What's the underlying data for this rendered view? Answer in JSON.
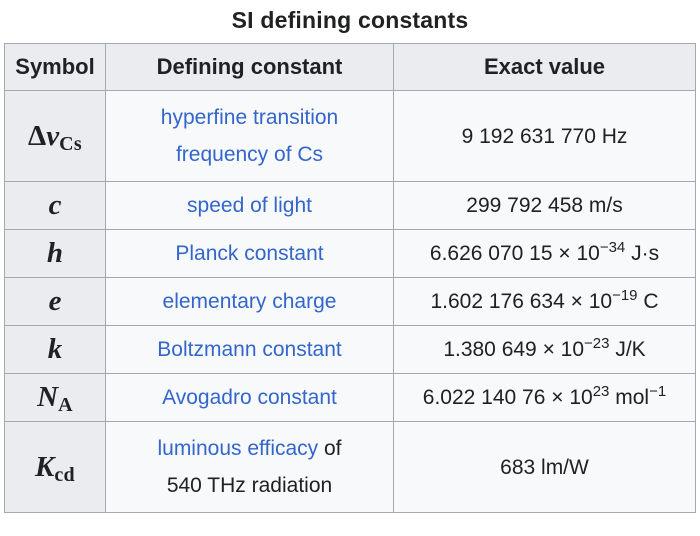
{
  "title": "SI defining constants",
  "headers": [
    "Symbol",
    "Defining constant",
    "Exact value"
  ],
  "colors": {
    "header_bg": "#eaecf0",
    "symbol_col_bg": "#eaecf0",
    "cell_bg": "#f8f9fa",
    "border": "#a2a9b1",
    "link": "#3366cc",
    "text": "#202122"
  },
  "rows": [
    {
      "symbol": {
        "pre": "Δ",
        "main": "ν",
        "sub": "Cs"
      },
      "constant_lines": [
        [
          {
            "text": "hyperfine transition",
            "link": true
          }
        ],
        [
          {
            "text": "frequency of Cs",
            "link": true
          }
        ]
      ],
      "value": [
        {
          "text": "9 192 631 770 Hz"
        }
      ]
    },
    {
      "symbol": {
        "main": "c"
      },
      "constant_lines": [
        [
          {
            "text": "speed of light",
            "link": true
          }
        ]
      ],
      "value": [
        {
          "text": "299 792 458 m/s"
        }
      ]
    },
    {
      "symbol": {
        "main": "h"
      },
      "constant_lines": [
        [
          {
            "text": "Planck constant",
            "link": true
          }
        ]
      ],
      "value": [
        {
          "text": "6.626 070 15 × 10"
        },
        {
          "text": "−34",
          "sup": true
        },
        {
          "text": " J·s"
        }
      ]
    },
    {
      "symbol": {
        "main": "e"
      },
      "constant_lines": [
        [
          {
            "text": "elementary charge",
            "link": true
          }
        ]
      ],
      "value": [
        {
          "text": "1.602 176 634 × 10"
        },
        {
          "text": "−19",
          "sup": true
        },
        {
          "text": " C"
        }
      ]
    },
    {
      "symbol": {
        "main": "k"
      },
      "constant_lines": [
        [
          {
            "text": "Boltzmann constant",
            "link": true
          }
        ]
      ],
      "value": [
        {
          "text": "1.380 649 × 10"
        },
        {
          "text": "−23",
          "sup": true
        },
        {
          "text": " J/K"
        }
      ]
    },
    {
      "symbol": {
        "main": "N",
        "sub": "A"
      },
      "constant_lines": [
        [
          {
            "text": "Avogadro constant",
            "link": true
          }
        ]
      ],
      "value": [
        {
          "text": "6.022 140 76 × 10"
        },
        {
          "text": "23",
          "sup": true
        },
        {
          "text": " mol"
        },
        {
          "text": "−1",
          "sup": true
        }
      ]
    },
    {
      "symbol": {
        "main": "K",
        "sub": "cd"
      },
      "constant_lines": [
        [
          {
            "text": "luminous efficacy",
            "link": true
          },
          {
            "text": " of",
            "link": false
          }
        ],
        [
          {
            "text": "540 THz radiation",
            "link": false
          }
        ]
      ],
      "value": [
        {
          "text": "683 lm/W"
        }
      ]
    }
  ]
}
